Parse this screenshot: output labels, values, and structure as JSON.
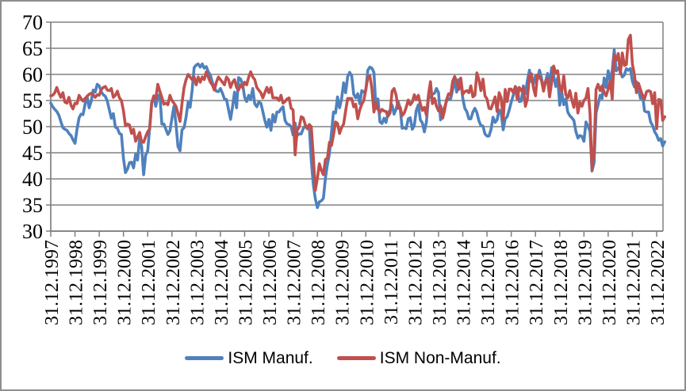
{
  "window": {
    "background": "#ffffff",
    "frame_color": "#8e8e8e"
  },
  "chart_data": {
    "type": "line",
    "title": "",
    "xlabel": "",
    "ylabel": "",
    "grid": "horizontal",
    "legend_position": "bottom",
    "ylim": [
      30,
      70
    ],
    "y_tick_step": 5,
    "y_tick_labels": [
      "70",
      "65",
      "60",
      "55",
      "50",
      "45",
      "40",
      "35",
      "30"
    ],
    "x_tick_labels": [
      "31.12.1997",
      "31.12.1998",
      "31.12.1999",
      "31.12.2000",
      "31.12.2001",
      "31.12.2002",
      "31.12.2003",
      "31.12.2004",
      "31.12.2005",
      "31.12.2006",
      "31.12.2007",
      "31.12.2008",
      "31.12.2009",
      "31.12.2010",
      "31.12.2011",
      "31.12.2012",
      "31.12.2013",
      "31.12.2014",
      "31.12.2015",
      "31.12.2016",
      "31.12.2017",
      "31.12.2018",
      "31.12.2019",
      "31.12.2020",
      "31.12.2021",
      "31.12.2022"
    ],
    "x_frequency": "monthly",
    "x_months_per_tick": 12,
    "colors": {
      "gridline": "#808080",
      "axis": "#808080",
      "tick_text": "#000000"
    },
    "series": [
      {
        "name": "ISM Manuf.",
        "color": "#4F81BD",
        "start": "31.12.1997",
        "values": [
          54.5,
          53.8,
          53.3,
          52.9,
          52.2,
          51.0,
          49.8,
          49.5,
          49.3,
          48.7,
          48.3,
          47.5,
          46.8,
          49.5,
          51.7,
          52.4,
          52.3,
          54.3,
          55.8,
          53.6,
          54.8,
          57.0,
          56.6,
          58.1,
          57.8,
          56.7,
          56.1,
          55.8,
          54.9,
          53.2,
          51.6,
          52.5,
          49.9,
          49.7,
          48.7,
          48.5,
          43.9,
          41.2,
          41.9,
          43.1,
          43.2,
          42.1,
          44.7,
          43.6,
          47.9,
          46.2,
          40.8,
          44.6,
          45.3,
          49.9,
          54.7,
          55.6,
          53.9,
          55.7,
          56.2,
          50.5,
          50.5,
          49.5,
          48.5,
          49.2,
          51.6,
          53.9,
          50.5,
          46.2,
          45.4,
          49.4,
          49.8,
          51.8,
          54.7,
          53.7,
          57.0,
          61.3,
          61.8,
          62.0,
          61.4,
          62.0,
          61.2,
          61.5,
          60.5,
          59.9,
          58.5,
          57.4,
          56.8,
          56.7,
          57.3,
          56.4,
          55.3,
          55.2,
          53.3,
          51.4,
          53.8,
          56.6,
          53.6,
          59.4,
          59.1,
          58.1,
          55.6,
          54.8,
          56.0,
          55.2,
          57.3,
          54.4,
          53.8,
          54.7,
          54.5,
          52.9,
          51.2,
          49.9,
          51.4,
          49.3,
          52.3,
          50.9,
          52.8,
          52.8,
          53.4,
          53.8,
          51.2,
          50.5,
          50.4,
          50.0,
          48.4,
          50.7,
          48.3,
          48.6,
          48.6,
          49.6,
          50.2,
          50.0,
          49.9,
          43.5,
          38.9,
          36.2,
          34.5,
          35.6,
          35.8,
          36.3,
          40.1,
          42.8,
          44.8,
          48.9,
          52.8,
          52.6,
          55.7,
          53.6,
          55.3,
          58.4,
          56.5,
          59.6,
          60.4,
          59.7,
          56.2,
          55.5,
          56.3,
          54.4,
          56.9,
          56.6,
          57.0,
          60.8,
          61.4,
          61.2,
          60.4,
          53.5,
          55.3,
          50.9,
          50.6,
          51.6,
          50.8,
          52.7,
          53.1,
          54.1,
          52.4,
          53.4,
          54.8,
          53.5,
          49.7,
          49.8,
          49.6,
          51.5,
          51.7,
          49.5,
          50.2,
          53.1,
          54.2,
          51.3,
          50.7,
          49.0,
          50.9,
          55.4,
          55.7,
          56.2,
          56.4,
          57.3,
          56.5,
          51.3,
          53.2,
          53.7,
          54.9,
          55.4,
          55.3,
          57.1,
          59.0,
          56.6,
          59.0,
          58.7,
          55.5,
          53.5,
          52.9,
          51.5,
          51.5,
          52.8,
          53.5,
          52.7,
          51.1,
          50.2,
          50.1,
          48.6,
          48.2,
          48.2,
          49.5,
          51.8,
          50.8,
          51.3,
          53.2,
          52.6,
          49.4,
          51.5,
          51.9,
          53.2,
          54.7,
          56.0,
          57.7,
          57.2,
          54.8,
          54.9,
          57.8,
          56.3,
          58.8,
          60.8,
          58.7,
          58.2,
          59.7,
          59.1,
          60.8,
          59.3,
          57.3,
          58.7,
          60.2,
          58.1,
          61.3,
          59.8,
          57.7,
          59.3,
          54.1,
          56.6,
          54.2,
          55.3,
          52.8,
          52.1,
          51.7,
          51.2,
          49.1,
          47.8,
          48.3,
          48.1,
          47.2,
          50.9,
          50.1,
          49.1,
          41.5,
          43.1,
          52.6,
          54.2,
          56.0,
          55.4,
          59.3,
          57.5,
          60.7,
          58.7,
          60.8,
          64.7,
          60.7,
          61.2,
          60.6,
          59.5,
          59.9,
          61.1,
          60.8,
          61.1,
          58.7,
          57.6,
          58.6,
          57.1,
          55.4,
          56.1,
          53.0,
          52.8,
          52.8,
          50.9,
          50.2,
          49.0,
          48.4,
          47.4,
          47.7,
          46.3,
          47.1
        ]
      },
      {
        "name": "ISM Non-Manuf.",
        "color": "#C0504D",
        "start": "31.12.1997",
        "values": [
          55.9,
          56.0,
          56.5,
          57.5,
          56.4,
          55.6,
          56.5,
          54.7,
          54.5,
          55.6,
          54.1,
          53.4,
          54.5,
          54.4,
          56.0,
          55.4,
          54.9,
          55.4,
          55.8,
          56.2,
          56.4,
          56.1,
          55.6,
          56.1,
          56.0,
          57.1,
          57.5,
          57.7,
          57.0,
          56.9,
          57.3,
          55.6,
          56.0,
          56.8,
          55.5,
          55.0,
          53.0,
          50.2,
          50.5,
          50.3,
          48.7,
          49.5,
          47.2,
          48.0,
          48.9,
          47.1,
          47.0,
          48.1,
          49.0,
          49.6,
          54.6,
          55.9,
          55.3,
          58.1,
          56.8,
          55.6,
          54.3,
          54.5,
          54.2,
          56.0,
          55.0,
          54.5,
          53.9,
          52.5,
          51.0,
          54.5,
          57.5,
          59.0,
          60.0,
          59.5,
          59.0,
          59.5,
          58.0,
          59.5,
          58.5,
          59.5,
          59.0,
          60.5,
          59.5,
          58.5,
          58.0,
          57.0,
          58.5,
          59.5,
          59.0,
          58.5,
          58.0,
          59.5,
          59.0,
          57.5,
          58.5,
          59.0,
          57.5,
          57.0,
          58.0,
          57.5,
          58.5,
          58.0,
          59.5,
          60.5,
          59.5,
          59.0,
          57.5,
          57.0,
          56.5,
          55.5,
          56.5,
          57.5,
          56.5,
          57.5,
          55.5,
          55.5,
          55.5,
          55.0,
          56.0,
          54.5,
          54.8,
          55.3,
          55.5,
          53.5,
          53.2,
          44.6,
          49.3,
          49.9,
          51.9,
          51.7,
          50.4,
          49.6,
          50.4,
          50.0,
          44.2,
          37.8,
          40.1,
          42.9,
          41.6,
          40.8,
          43.7,
          44.0,
          47.0,
          46.4,
          48.4,
          50.9,
          50.6,
          48.7,
          49.8,
          50.5,
          53.0,
          55.4,
          55.4,
          55.4,
          53.8,
          54.3,
          51.5,
          53.2,
          54.3,
          55.0,
          57.1,
          59.4,
          59.7,
          57.3,
          52.8,
          54.6,
          53.3,
          52.7,
          53.3,
          53.0,
          52.9,
          52.0,
          52.6,
          56.8,
          57.3,
          56.0,
          53.5,
          53.7,
          52.1,
          52.6,
          53.7,
          55.1,
          54.2,
          54.7,
          56.1,
          55.2,
          56.0,
          54.4,
          53.1,
          53.7,
          52.2,
          56.0,
          58.6,
          54.4,
          55.4,
          53.9,
          53.0,
          54.0,
          51.6,
          53.1,
          55.2,
          56.3,
          56.0,
          58.7,
          59.6,
          58.6,
          57.1,
          59.3,
          56.2,
          56.7,
          56.9,
          56.5,
          57.8,
          55.7,
          56.0,
          60.3,
          59.0,
          56.9,
          59.1,
          55.9,
          55.3,
          53.5,
          53.4,
          54.5,
          55.7,
          52.9,
          56.5,
          55.5,
          51.4,
          57.1,
          54.8,
          57.2,
          57.2,
          56.5,
          57.6,
          55.2,
          57.5,
          56.9,
          57.4,
          53.9,
          55.3,
          59.8,
          60.1,
          57.4,
          55.9,
          59.9,
          59.5,
          58.8,
          56.8,
          58.6,
          59.1,
          55.7,
          58.5,
          61.6,
          60.3,
          60.7,
          57.6,
          56.7,
          59.7,
          56.1,
          55.5,
          56.9,
          55.1,
          53.7,
          56.4,
          52.6,
          54.7,
          53.9,
          55.0,
          55.5,
          57.3,
          52.5,
          41.8,
          45.4,
          57.1,
          58.1,
          56.9,
          57.8,
          56.6,
          55.9,
          57.2,
          58.7,
          55.3,
          63.7,
          62.7,
          64.0,
          60.1,
          64.1,
          61.7,
          61.9,
          66.7,
          67.5,
          62.0,
          59.9,
          56.5,
          58.3,
          57.1,
          55.9,
          55.3,
          56.7,
          56.9,
          56.7,
          54.4,
          56.5,
          49.6,
          55.2,
          55.1,
          51.2,
          51.9
        ]
      }
    ]
  },
  "legend": {
    "items": [
      {
        "label": "ISM Manuf.",
        "color": "#4F81BD"
      },
      {
        "label": "ISM Non-Manuf.",
        "color": "#C0504D"
      }
    ]
  }
}
